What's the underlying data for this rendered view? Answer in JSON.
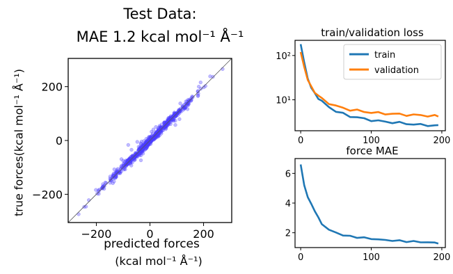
{
  "chart_data": [
    {
      "type": "scatter",
      "title": "Test Data:",
      "subtitle": "MAE 1.2 kcal mol⁻¹ Å⁻¹",
      "xlabel": "predicted forces",
      "xlabel_units": "(kcal mol⁻¹ Å⁻¹)",
      "ylabel": "true forces(kcal mol⁻¹ Å⁻¹)",
      "xlim": [
        -305,
        305
      ],
      "ylim": [
        -305,
        305
      ],
      "xticks": [
        -200,
        0,
        200
      ],
      "yticks": [
        -200,
        0,
        200
      ],
      "xtick_labels": [
        "−200",
        "0",
        "200"
      ],
      "ytick_labels": [
        "−200",
        "0",
        "200"
      ],
      "reference_line": "y = x",
      "point_color": "#4b3dff",
      "points_description_range": [
        -270,
        270
      ],
      "grid": false
    },
    {
      "type": "line",
      "title": "train/validation loss",
      "yscale": "log",
      "xlim": [
        -8,
        205
      ],
      "ylim": [
        2,
        220
      ],
      "xticks": [
        0,
        100,
        200
      ],
      "xtick_labels": [
        "0",
        "100",
        "200"
      ],
      "yticks": [
        10,
        100
      ],
      "ytick_labels": [
        "10¹",
        "10²"
      ],
      "legend": "top-right",
      "grid": false,
      "x": [
        0,
        5,
        10,
        15,
        20,
        25,
        30,
        40,
        50,
        60,
        70,
        80,
        90,
        100,
        110,
        120,
        130,
        140,
        150,
        160,
        170,
        180,
        190,
        195
      ],
      "series": [
        {
          "name": "train",
          "color": "#1f77b4",
          "values": [
            180,
            70,
            30,
            18,
            14,
            11,
            9,
            7,
            5.5,
            4.8,
            4.3,
            4.0,
            3.7,
            3.5,
            3.3,
            3.2,
            3.1,
            3.0,
            2.9,
            2.8,
            2.7,
            2.7,
            2.6,
            2.6
          ]
        },
        {
          "name": "validation",
          "color": "#ff7f0e",
          "values": [
            120,
            55,
            28,
            19,
            15,
            12.5,
            10.5,
            8.5,
            7.2,
            6.5,
            6.0,
            5.7,
            5.4,
            5.2,
            5.0,
            4.9,
            4.8,
            4.7,
            4.6,
            4.5,
            4.5,
            4.4,
            4.3,
            4.3
          ]
        }
      ]
    },
    {
      "type": "line",
      "title": "force MAE",
      "xlim": [
        -8,
        205
      ],
      "ylim": [
        1.0,
        7.0
      ],
      "xticks": [
        0,
        100,
        200
      ],
      "xtick_labels": [
        "0",
        "100",
        "200"
      ],
      "yticks": [
        2,
        4,
        6
      ],
      "ytick_labels": [
        "2",
        "4",
        "6"
      ],
      "grid": false,
      "x": [
        0,
        5,
        10,
        15,
        20,
        25,
        30,
        40,
        50,
        60,
        70,
        80,
        90,
        100,
        110,
        120,
        130,
        140,
        150,
        160,
        170,
        180,
        190,
        195
      ],
      "series": [
        {
          "name": "",
          "color": "#1f77b4",
          "values": [
            6.6,
            5.2,
            4.4,
            3.9,
            3.5,
            3.0,
            2.6,
            2.2,
            2.0,
            1.85,
            1.75,
            1.7,
            1.65,
            1.6,
            1.55,
            1.5,
            1.48,
            1.45,
            1.42,
            1.4,
            1.38,
            1.35,
            1.33,
            1.3
          ]
        }
      ]
    }
  ]
}
